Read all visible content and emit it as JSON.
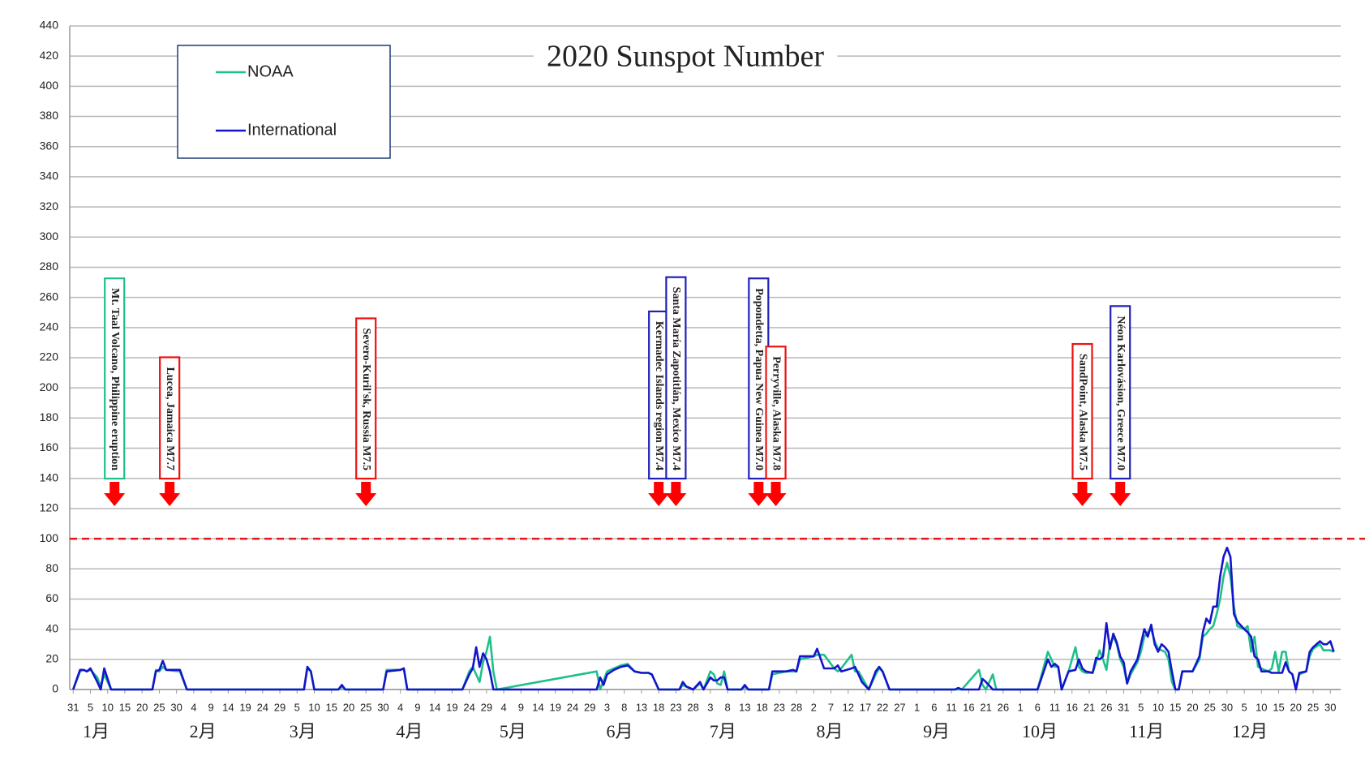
{
  "chart_data": {
    "type": "line",
    "title": "2020 Sunspot Number",
    "x": [
      0,
      2,
      3,
      4,
      5,
      7,
      8,
      9,
      11,
      23,
      24,
      25,
      26,
      27,
      31,
      33,
      67,
      68,
      69,
      70,
      77,
      78,
      79,
      90,
      91,
      95,
      96,
      97,
      113,
      115,
      116,
      117,
      118,
      119,
      120,
      121,
      122,
      123,
      152,
      153,
      154,
      155,
      157,
      159,
      161,
      163,
      165,
      167,
      168,
      170,
      176,
      177,
      178,
      180,
      182,
      183,
      185,
      186,
      187,
      188,
      189,
      190,
      194,
      195,
      196,
      202,
      203,
      207,
      209,
      210,
      211,
      215,
      216,
      218,
      221,
      222,
      223,
      226,
      227,
      228,
      229,
      231,
      233,
      234,
      235,
      237,
      256,
      257,
      258,
      263,
      264,
      265,
      267,
      268,
      280,
      283,
      284,
      285,
      286,
      287,
      289,
      291,
      292,
      293,
      294,
      296,
      297,
      298,
      299,
      300,
      301,
      302,
      303,
      304,
      305,
      306,
      307,
      309,
      310,
      311,
      312,
      313,
      314,
      315,
      316,
      317,
      318,
      319,
      320,
      321,
      322,
      325,
      327,
      328,
      329,
      330,
      331,
      332,
      333,
      334,
      335,
      336,
      337,
      338,
      340,
      341,
      342,
      343,
      344,
      345,
      347,
      348,
      349,
      350,
      351,
      352,
      353,
      354,
      355,
      356,
      358,
      359,
      360,
      362,
      363,
      364,
      365,
      366
    ],
    "xlim": [
      -1,
      368
    ],
    "xticks": [
      {
        "value": 0,
        "label": "31"
      },
      5,
      10,
      15,
      20,
      25,
      30,
      {
        "value": 35,
        "label": "4"
      },
      {
        "value": 40,
        "label": "9"
      },
      {
        "value": 45,
        "label": "14"
      },
      {
        "value": 50,
        "label": "19"
      },
      {
        "value": 55,
        "label": "24"
      },
      {
        "value": 60,
        "label": "29"
      },
      {
        "value": 65,
        "label": "5"
      },
      {
        "value": 70,
        "label": "10"
      },
      {
        "value": 75,
        "label": "15"
      },
      {
        "value": 80,
        "label": "20"
      },
      {
        "value": 85,
        "label": "25"
      },
      {
        "value": 90,
        "label": "30"
      },
      {
        "value": 95,
        "label": "4"
      },
      {
        "value": 100,
        "label": "9"
      },
      {
        "value": 105,
        "label": "14"
      },
      {
        "value": 110,
        "label": "19"
      },
      {
        "value": 115,
        "label": "24"
      },
      {
        "value": 120,
        "label": "29"
      },
      {
        "value": 125,
        "label": "4"
      },
      {
        "value": 130,
        "label": "9"
      },
      {
        "value": 135,
        "label": "14"
      },
      {
        "value": 140,
        "label": "19"
      },
      {
        "value": 145,
        "label": "24"
      },
      {
        "value": 150,
        "label": "29"
      },
      {
        "value": 155,
        "label": "3"
      },
      {
        "value": 160,
        "label": "8"
      },
      {
        "value": 165,
        "label": "13"
      },
      {
        "value": 170,
        "label": "18"
      },
      {
        "value": 175,
        "label": "23"
      },
      {
        "value": 180,
        "label": "28"
      },
      {
        "value": 185,
        "label": "3"
      },
      {
        "value": 190,
        "label": "8"
      },
      {
        "value": 195,
        "label": "13"
      },
      {
        "value": 200,
        "label": "18"
      },
      {
        "value": 205,
        "label": "23"
      },
      {
        "value": 210,
        "label": "28"
      },
      {
        "value": 215,
        "label": "2"
      },
      {
        "value": 220,
        "label": "7"
      },
      {
        "value": 225,
        "label": "12"
      },
      {
        "value": 230,
        "label": "17"
      },
      {
        "value": 235,
        "label": "22"
      },
      {
        "value": 240,
        "label": "27"
      },
      {
        "value": 245,
        "label": "1"
      },
      {
        "value": 250,
        "label": "6"
      },
      {
        "value": 255,
        "label": "11"
      },
      {
        "value": 260,
        "label": "16"
      },
      {
        "value": 265,
        "label": "21"
      },
      {
        "value": 270,
        "label": "26"
      },
      {
        "value": 275,
        "label": "1"
      },
      {
        "value": 280,
        "label": "6"
      },
      {
        "value": 285,
        "label": "11"
      },
      {
        "value": 290,
        "label": "16"
      },
      {
        "value": 295,
        "label": "21"
      },
      {
        "value": 300,
        "label": "26"
      },
      {
        "value": 305,
        "label": "31"
      },
      {
        "value": 310,
        "label": "5"
      },
      {
        "value": 315,
        "label": "10"
      },
      {
        "value": 320,
        "label": "15"
      },
      {
        "value": 325,
        "label": "20"
      },
      {
        "value": 330,
        "label": "25"
      },
      {
        "value": 335,
        "label": "30"
      },
      {
        "value": 340,
        "label": "5"
      },
      {
        "value": 345,
        "label": "10"
      },
      {
        "value": 350,
        "label": "15"
      },
      {
        "value": 355,
        "label": "20"
      },
      {
        "value": 360,
        "label": "25"
      },
      {
        "value": 365,
        "label": "30"
      }
    ],
    "month_ticks": [
      {
        "value": 1,
        "label": "1月"
      },
      {
        "value": 32,
        "label": "2月"
      },
      {
        "value": 61,
        "label": "3月"
      },
      {
        "value": 92,
        "label": "4月"
      },
      {
        "value": 122,
        "label": "5月"
      },
      {
        "value": 153,
        "label": "6月"
      },
      {
        "value": 183,
        "label": "7月"
      },
      {
        "value": 214,
        "label": "8月"
      },
      {
        "value": 245,
        "label": "9月"
      },
      {
        "value": 275,
        "label": "10月"
      },
      {
        "value": 306,
        "label": "11月"
      },
      {
        "value": 336,
        "label": "12月"
      }
    ],
    "ylim": [
      0,
      440
    ],
    "yticks": [
      0,
      20,
      40,
      60,
      80,
      100,
      120,
      140,
      160,
      180,
      200,
      220,
      240,
      260,
      280,
      300,
      320,
      340,
      360,
      380,
      400,
      420,
      440
    ],
    "grid": true,
    "legend": "upper left",
    "threshold": 100,
    "threshold_color": "#e8141a",
    "series": [
      {
        "name": "NOAA",
        "color": "#1fc08a",
        "values": [
          0,
          12,
          13,
          12,
          13,
          8,
          2,
          10,
          0,
          0,
          13,
          12,
          15,
          13,
          12,
          0,
          0,
          14,
          12,
          0,
          0,
          2,
          0,
          0,
          13,
          13,
          14,
          0,
          0,
          12,
          15,
          10,
          5,
          18,
          25,
          35,
          12,
          0,
          12,
          0,
          6,
          12,
          14,
          16,
          17,
          12,
          11,
          11,
          10,
          0,
          0,
          3,
          2,
          0,
          4,
          0,
          12,
          10,
          4,
          3,
          12,
          0,
          0,
          2,
          0,
          0,
          10,
          12,
          12,
          12,
          20,
          22,
          23,
          23,
          14,
          12,
          14,
          23,
          12,
          12,
          8,
          0,
          10,
          14,
          12,
          0,
          0,
          0,
          0,
          13,
          3,
          0,
          10,
          0,
          0,
          25,
          20,
          15,
          15,
          0,
          12,
          28,
          15,
          12,
          11,
          11,
          18,
          26,
          20,
          13,
          30,
          35,
          30,
          20,
          15,
          4,
          10,
          18,
          25,
          35,
          38,
          40,
          32,
          27,
          26,
          25,
          20,
          5,
          0,
          0,
          12,
          12,
          20,
          35,
          37,
          40,
          42,
          50,
          60,
          75,
          84,
          75,
          55,
          42,
          40,
          42,
          25,
          35,
          15,
          14,
          12,
          14,
          25,
          12,
          25,
          25,
          12,
          10,
          0,
          10,
          12,
          22,
          27,
          30,
          26,
          26,
          26,
          25
        ]
      },
      {
        "name": "International",
        "color": "#1414cc",
        "values": [
          0,
          13,
          13,
          12,
          14,
          5,
          0,
          14,
          0,
          0,
          12,
          13,
          19,
          13,
          13,
          0,
          0,
          15,
          12,
          0,
          0,
          3,
          0,
          0,
          12,
          13,
          14,
          0,
          0,
          10,
          14,
          28,
          15,
          24,
          20,
          12,
          0,
          0,
          0,
          8,
          3,
          10,
          13,
          15,
          16,
          12,
          11,
          11,
          10,
          0,
          0,
          5,
          2,
          0,
          5,
          0,
          8,
          6,
          6,
          8,
          8,
          0,
          0,
          3,
          0,
          0,
          12,
          12,
          13,
          12,
          22,
          22,
          27,
          14,
          14,
          16,
          12,
          14,
          15,
          10,
          5,
          0,
          12,
          15,
          12,
          0,
          0,
          1,
          0,
          0,
          7,
          5,
          0,
          0,
          0,
          20,
          15,
          17,
          15,
          0,
          12,
          13,
          20,
          14,
          12,
          11,
          21,
          20,
          22,
          44,
          27,
          37,
          31,
          22,
          18,
          4,
          12,
          20,
          30,
          40,
          35,
          43,
          30,
          25,
          30,
          28,
          25,
          12,
          0,
          0,
          12,
          12,
          22,
          38,
          47,
          44,
          55,
          55,
          75,
          88,
          94,
          88,
          50,
          45,
          40,
          38,
          35,
          22,
          20,
          12,
          12,
          11,
          11,
          11,
          11,
          18,
          12,
          10,
          0,
          11,
          12,
          25,
          28,
          32,
          30,
          30,
          32,
          25
        ]
      }
    ],
    "annotations": [
      {
        "text": "Mt. Taal Volcano, Philippine eruption",
        "x": 12,
        "color": "#1fc08a"
      },
      {
        "text": "Lucea, Jamaica M7.7",
        "x": 28,
        "color": "#ee1111"
      },
      {
        "text": "Severo-Kuril'sk, Russia M7.5",
        "x": 85,
        "color": "#ee1111"
      },
      {
        "text": "Kermadec Islands region M7.4",
        "x": 170,
        "color": "#2020b8"
      },
      {
        "text": "Santa María Zapotitlán, Mexico M7.4",
        "x": 175,
        "color": "#2020b8"
      },
      {
        "text": "Popondetta, Papua New Guinea M7.0",
        "x": 199,
        "color": "#2020b8"
      },
      {
        "text": "Perryville, Alaska M7.8",
        "x": 204,
        "color": "#ee1111"
      },
      {
        "text": "SandPoint, Alaska M7.5",
        "x": 293,
        "color": "#ee1111"
      },
      {
        "text": "Néon Karlovásion, Greece M7.0",
        "x": 304,
        "color": "#2020b8"
      }
    ],
    "arrow_color": "#ff0000"
  }
}
